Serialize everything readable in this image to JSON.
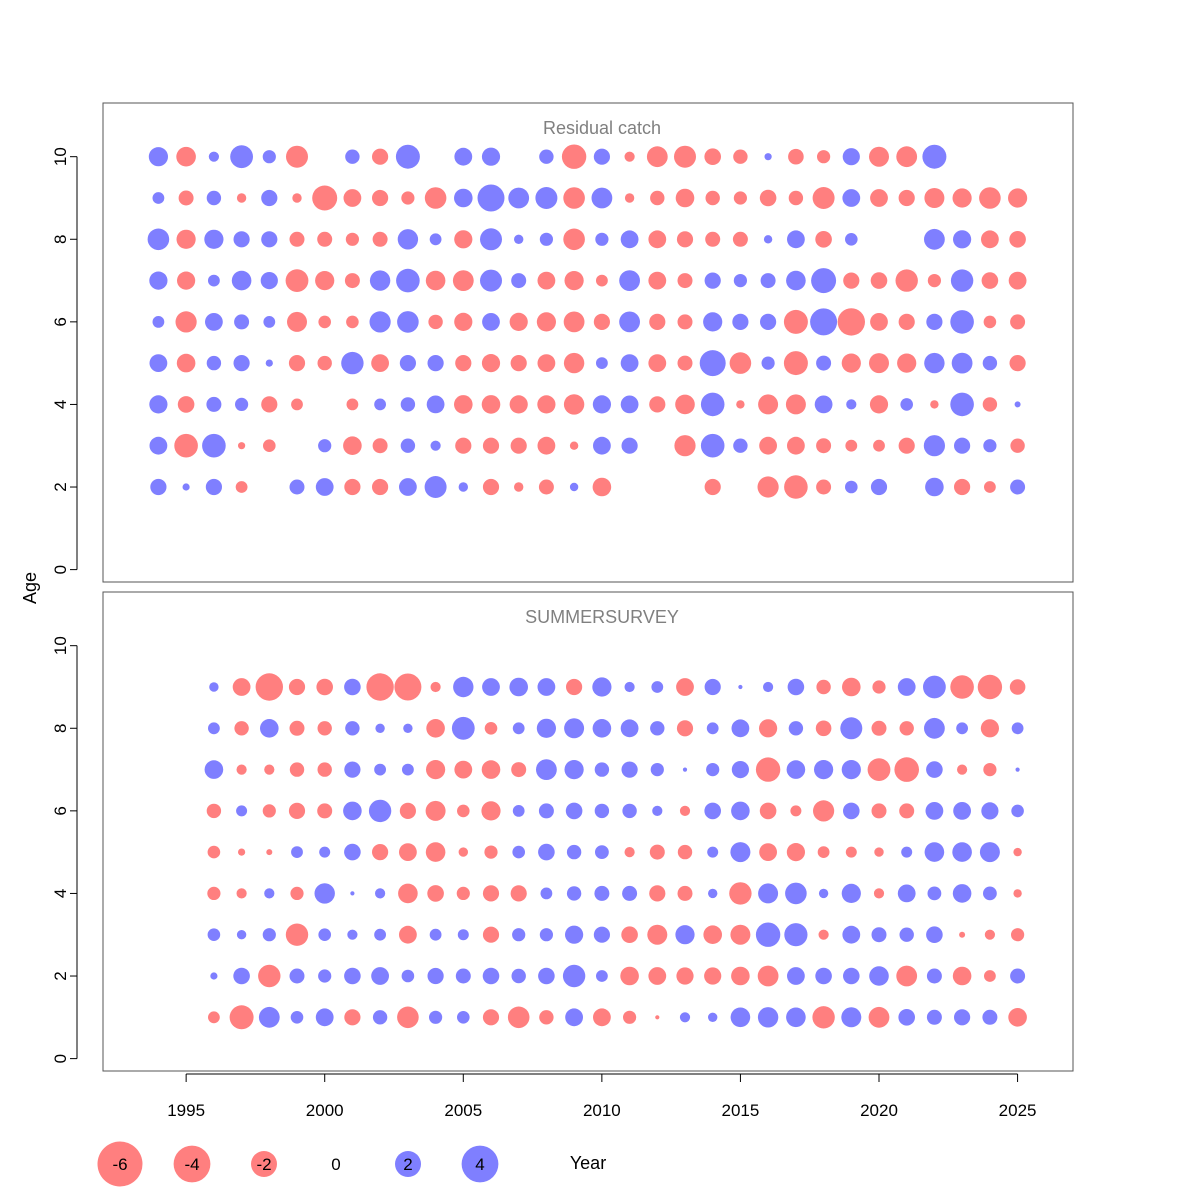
{
  "chart_data": {
    "type": "scatter",
    "subtype": "residual-bubble",
    "xlabel": "Year",
    "ylabel": "Age",
    "x_ticks": [
      1995,
      2000,
      2005,
      2010,
      2015,
      2020,
      2025
    ],
    "xlim": [
      1992,
      2027
    ],
    "y_ticks": [
      0,
      2,
      4,
      6,
      8,
      10
    ],
    "ylim": [
      -0.3,
      11.3
    ],
    "colors": {
      "positive": "#0000ff",
      "negative": "#ff0000",
      "fill_opacity": 0.5,
      "title": "#808080"
    },
    "legend": {
      "position": "bottom",
      "values": [
        -6,
        -4,
        -2,
        0,
        2,
        4
      ],
      "labels": [
        "-6",
        "-4",
        "-2",
        "0",
        "2",
        "4"
      ]
    },
    "panels": [
      {
        "title": "Residual catch",
        "years": [
          1994,
          1995,
          1996,
          1997,
          1998,
          1999,
          2000,
          2001,
          2002,
          2003,
          2004,
          2005,
          2006,
          2007,
          2008,
          2009,
          2010,
          2011,
          2012,
          2013,
          2014,
          2015,
          2016,
          2017,
          2018,
          2019,
          2020,
          2021,
          2022,
          2023,
          2024,
          2025
        ],
        "ages": [
          2,
          3,
          4,
          5,
          6,
          7,
          8,
          9,
          10
        ],
        "residuals": [
          [
            1.5,
            0.3,
            1.5,
            -0.8,
            0,
            1.3,
            1.8,
            -1.5,
            -1.5,
            1.8,
            2.8,
            0.5,
            -1.5,
            -0.5,
            -1.3,
            0.4,
            -2.0,
            null,
            null,
            null,
            -1.5,
            null,
            -2.6,
            -3.2,
            -1.3,
            0.9,
            1.5,
            null,
            2.0,
            -1.5,
            -0.8,
            1.3
          ],
          [
            1.8,
            -3.2,
            3.2,
            -0.3,
            -0.9,
            0,
            1.0,
            -2.0,
            -1.3,
            1.2,
            0.6,
            -1.5,
            -1.5,
            -1.5,
            -1.8,
            -0.4,
            1.8,
            1.5,
            0,
            -2.6,
            3.2,
            1.2,
            -1.8,
            -1.8,
            -1.3,
            -0.8,
            -0.8,
            -1.5,
            2.6,
            1.5,
            1.0,
            -1.2
          ],
          [
            1.9,
            -1.6,
            1.3,
            1.0,
            -1.5,
            -0.8,
            0,
            -0.8,
            0.8,
            1.2,
            1.8,
            -2.0,
            -2.0,
            -1.9,
            -1.9,
            -2.4,
            1.9,
            1.8,
            -1.5,
            -2.2,
            3.2,
            -0.4,
            -2.3,
            -2.3,
            1.8,
            0.6,
            -1.9,
            0.9,
            -0.4,
            3.2,
            -1.2,
            0.2
          ],
          [
            1.8,
            -2.0,
            1.2,
            1.5,
            0.3,
            -1.5,
            -1.2,
            2.9,
            -1.8,
            1.5,
            1.5,
            -1.5,
            -1.9,
            -1.5,
            -1.8,
            -2.4,
            0.8,
            1.8,
            -1.8,
            -1.3,
            3.9,
            -2.7,
            1.0,
            -3.3,
            1.3,
            -2.1,
            -2.3,
            -2.1,
            2.4,
            2.5,
            1.2,
            -1.5
          ],
          [
            0.8,
            -2.6,
            1.8,
            1.3,
            0.8,
            -2.3,
            -0.9,
            -0.9,
            2.6,
            2.7,
            -1.2,
            -1.9,
            1.8,
            -1.9,
            -2.1,
            -2.5,
            -1.5,
            2.5,
            -1.5,
            -1.3,
            2.1,
            1.5,
            1.5,
            -3.3,
            4.2,
            -4.3,
            -1.8,
            -1.5,
            1.5,
            3.2,
            -0.9,
            -1.3
          ],
          [
            1.9,
            -1.9,
            0.8,
            2.2,
            1.7,
            -3.0,
            -2.1,
            -1.3,
            2.4,
            3.2,
            -2.2,
            -2.5,
            2.8,
            1.3,
            -1.8,
            -2.1,
            -0.8,
            2.5,
            -1.8,
            -1.3,
            1.5,
            1.0,
            1.3,
            2.2,
            3.6,
            -1.5,
            -1.6,
            -2.9,
            -1.0,
            2.9,
            -1.6,
            -1.8
          ],
          [
            2.7,
            -2.1,
            2.1,
            1.5,
            1.5,
            -1.3,
            -1.3,
            -1.0,
            -1.3,
            2.4,
            0.8,
            -1.9,
            2.8,
            0.5,
            1.0,
            -2.7,
            1.0,
            1.8,
            -1.8,
            -1.5,
            -1.3,
            -1.3,
            0.4,
            1.8,
            -1.6,
            0.9,
            null,
            null,
            2.5,
            1.9,
            -1.8,
            -1.6
          ],
          [
            0.8,
            -1.3,
            1.2,
            -0.5,
            1.5,
            -0.5,
            -3.6,
            -1.8,
            -1.5,
            -1.0,
            -2.7,
            2.0,
            4.2,
            2.5,
            2.8,
            -2.7,
            2.5,
            -0.5,
            -1.2,
            -2.0,
            -1.2,
            -1.0,
            -1.6,
            -1.2,
            -2.8,
            1.8,
            -1.8,
            -1.5,
            -2.3,
            -2.1,
            -2.7,
            -2.1
          ],
          [
            2.1,
            -2.2,
            0.6,
            3.0,
            1.0,
            -2.8,
            null,
            1.2,
            -1.5,
            3.3,
            null,
            1.8,
            1.9,
            null,
            1.2,
            -3.4,
            1.5,
            -0.6,
            -2.5,
            -2.8,
            -1.6,
            -1.2,
            0.3,
            -1.4,
            -1.0,
            1.7,
            -2.3,
            -2.5,
            3.3,
            null,
            null,
            null
          ]
        ]
      },
      {
        "title": "SUMMERSURVEY",
        "years": [
          1996,
          1997,
          1998,
          1999,
          2000,
          2001,
          2002,
          2003,
          2004,
          2005,
          2006,
          2007,
          2008,
          2009,
          2010,
          2011,
          2012,
          2013,
          2014,
          2015,
          2016,
          2017,
          2018,
          2019,
          2020,
          2021,
          2022,
          2023,
          2024,
          2025
        ],
        "ages": [
          1,
          2,
          3,
          4,
          5,
          6,
          7,
          8,
          9
        ],
        "residuals": [
          [
            -0.8,
            -3.3,
            2.5,
            0.9,
            1.8,
            -1.5,
            1.2,
            -2.7,
            1.0,
            0.9,
            -1.5,
            -2.7,
            -1.2,
            1.8,
            -1.8,
            -1.0,
            -0.1,
            0.6,
            0.5,
            2.2,
            2.4,
            2.2,
            -2.9,
            2.3,
            -2.5,
            1.6,
            1.3,
            1.5,
            1.3,
            -2.0
          ],
          [
            0.3,
            1.6,
            -2.9,
            1.3,
            1.0,
            1.6,
            1.8,
            0.9,
            1.5,
            1.3,
            1.6,
            1.2,
            1.6,
            2.9,
            0.8,
            -2.0,
            -1.8,
            -1.7,
            -1.7,
            -2.0,
            -2.5,
            1.8,
            1.6,
            1.6,
            2.2,
            -2.5,
            1.3,
            -2.0,
            -0.8,
            1.3
          ],
          [
            0.9,
            0.5,
            1.0,
            -2.9,
            0.9,
            0.6,
            0.8,
            -1.8,
            0.8,
            0.7,
            -1.5,
            1.0,
            1.0,
            1.9,
            1.5,
            -1.6,
            -2.3,
            2.1,
            -2.0,
            -2.3,
            3.4,
            3.1,
            -0.6,
            1.8,
            1.3,
            1.2,
            1.6,
            -0.2,
            -0.6,
            -1.0
          ],
          [
            -1.0,
            -0.6,
            0.6,
            -1.0,
            2.4,
            0.1,
            0.6,
            -2.2,
            -1.6,
            -1.0,
            -1.5,
            -1.5,
            0.8,
            1.2,
            1.3,
            1.3,
            -1.5,
            -1.3,
            0.5,
            -2.9,
            2.3,
            2.7,
            0.5,
            2.1,
            -0.6,
            1.8,
            1.1,
            2.0,
            1.1,
            -0.4
          ],
          [
            -0.9,
            -0.3,
            -0.2,
            0.8,
            0.7,
            1.6,
            -1.5,
            -1.8,
            -2.2,
            -0.5,
            -1.0,
            0.9,
            1.6,
            1.2,
            1.1,
            -0.6,
            -1.3,
            -1.2,
            0.7,
            2.3,
            -1.8,
            -1.9,
            -0.8,
            -0.7,
            -0.5,
            0.7,
            2.2,
            2.2,
            2.3,
            -0.4
          ],
          [
            -1.2,
            0.7,
            -1.0,
            -1.5,
            -1.3,
            2.0,
            2.9,
            -1.5,
            -2.3,
            -0.9,
            -2.1,
            0.8,
            1.3,
            1.6,
            1.2,
            1.2,
            0.6,
            -0.6,
            1.6,
            2.0,
            -1.6,
            -0.7,
            -2.6,
            1.6,
            -1.3,
            -1.3,
            1.8,
            1.8,
            1.7,
            0.9
          ],
          [
            2.0,
            -0.6,
            -0.6,
            -1.2,
            -1.2,
            1.5,
            0.8,
            0.8,
            -2.1,
            -1.8,
            -2.0,
            -1.3,
            2.5,
            2.1,
            1.2,
            1.5,
            1.0,
            0.1,
            1.0,
            1.7,
            -3.4,
            2.0,
            2.1,
            2.1,
            -3.0,
            -3.5,
            1.6,
            -0.6,
            -1.0,
            0.1
          ],
          [
            0.8,
            -1.2,
            2.0,
            -1.3,
            -1.2,
            1.2,
            0.5,
            0.5,
            -2.0,
            3.0,
            -0.9,
            0.8,
            2.1,
            2.3,
            2.0,
            1.8,
            1.2,
            -1.5,
            0.8,
            1.8,
            -1.9,
            1.2,
            -1.4,
            2.8,
            -1.3,
            -1.2,
            2.5,
            0.8,
            -1.9,
            0.8
          ],
          [
            0.5,
            -1.8,
            -4.3,
            -1.5,
            -1.6,
            1.6,
            -4.3,
            -4.2,
            -0.6,
            2.4,
            1.8,
            2.0,
            1.8,
            -1.5,
            2.1,
            0.6,
            0.8,
            -1.8,
            1.5,
            0.1,
            0.6,
            1.6,
            -1.2,
            -2.0,
            -1.0,
            1.8,
            3.0,
            -3.2,
            -3.4,
            -1.4
          ]
        ]
      }
    ]
  }
}
